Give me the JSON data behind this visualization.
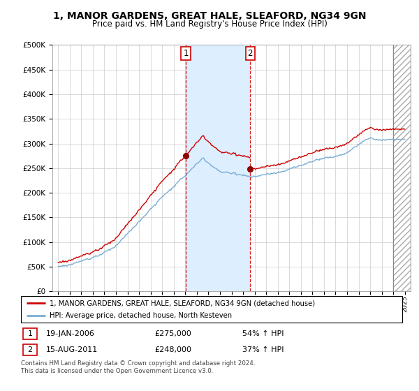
{
  "title": "1, MANOR GARDENS, GREAT HALE, SLEAFORD, NG34 9GN",
  "subtitle": "Price paid vs. HM Land Registry's House Price Index (HPI)",
  "legend_line1": "1, MANOR GARDENS, GREAT HALE, SLEAFORD, NG34 9GN (detached house)",
  "legend_line2": "HPI: Average price, detached house, North Kesteven",
  "annotation1_label": "1",
  "annotation1_date": "19-JAN-2006",
  "annotation1_price": "£275,000",
  "annotation1_hpi": "54% ↑ HPI",
  "annotation2_label": "2",
  "annotation2_date": "15-AUG-2011",
  "annotation2_price": "£248,000",
  "annotation2_hpi": "37% ↑ HPI",
  "footer": "Contains HM Land Registry data © Crown copyright and database right 2024.\nThis data is licensed under the Open Government Licence v3.0.",
  "sale1_x": 2006.05,
  "sale1_y": 275000,
  "sale2_x": 2011.62,
  "sale2_y": 248000,
  "hpi_color": "#7aadd4",
  "price_color": "#cc0000",
  "sale_marker_color": "#990000",
  "vline_color": "#cc0000",
  "shade_color": "#ddeeff",
  "ylim": [
    0,
    500000
  ],
  "xlim_start": 1994.5,
  "xlim_end": 2025.5,
  "ytick_values": [
    0,
    50000,
    100000,
    150000,
    200000,
    250000,
    300000,
    350000,
    400000,
    450000,
    500000
  ],
  "xtick_years": [
    1995,
    1996,
    1997,
    1998,
    1999,
    2000,
    2001,
    2002,
    2003,
    2004,
    2005,
    2006,
    2007,
    2008,
    2009,
    2010,
    2011,
    2012,
    2013,
    2014,
    2015,
    2016,
    2017,
    2018,
    2019,
    2020,
    2021,
    2022,
    2023,
    2024,
    2025
  ],
  "background_color": "#ffffff",
  "grid_color": "#cccccc",
  "hatch_start": 2024.0
}
